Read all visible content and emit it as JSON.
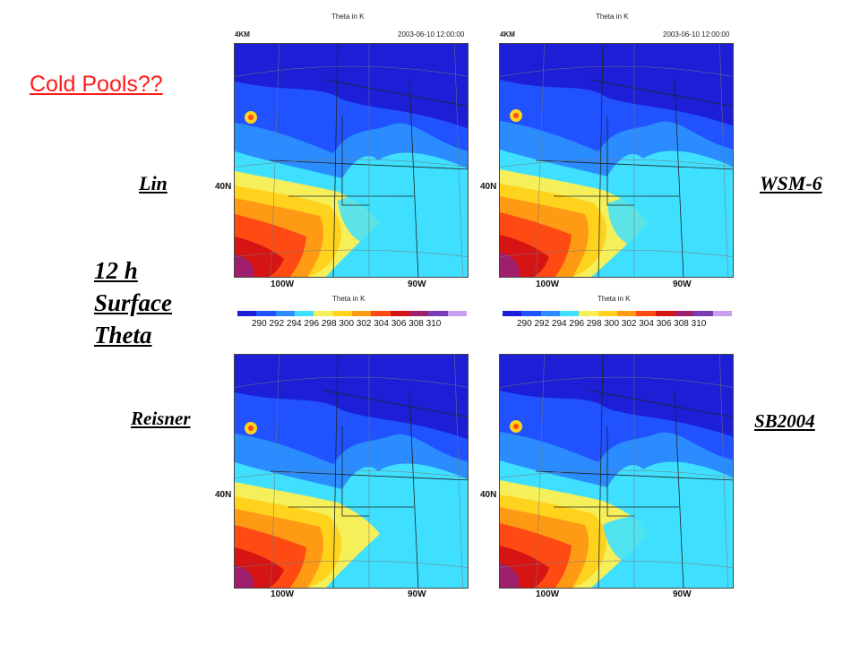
{
  "headline": "Cold Pools??",
  "panel_label": [
    "12 h",
    "Surface",
    "Theta"
  ],
  "colorbar": {
    "title": "Theta in K",
    "ticks": "290 292 294 296 298 300 302 304 306 308 310",
    "colors": [
      "#1c1fd6",
      "#2152ff",
      "#2a8cff",
      "#3fe0ff",
      "#f5f05a",
      "#ffd21e",
      "#ff9a14",
      "#ff4a14",
      "#d61414",
      "#a01e6e",
      "#7a3cb4",
      "#c9a0f0"
    ]
  },
  "maps": [
    {
      "scheme": "Lin",
      "title": "Theta in K",
      "tag": "4KM",
      "time": "2003-06-10 12:00:00",
      "lat": "40N",
      "lon_w": "100W",
      "lon_e": "90W"
    },
    {
      "scheme": "WSM-6",
      "title": "Theta in K",
      "tag": "4KM",
      "time": "2003-06-10 12:00:00",
      "lat": "40N",
      "lon_w": "100W",
      "lon_e": "90W"
    },
    {
      "scheme": "Reisner",
      "lat": "40N",
      "lon_w": "100W",
      "lon_e": "90W"
    },
    {
      "scheme": "SB2004",
      "lat": "40N",
      "lon_w": "100W",
      "lon_e": "90W"
    }
  ]
}
